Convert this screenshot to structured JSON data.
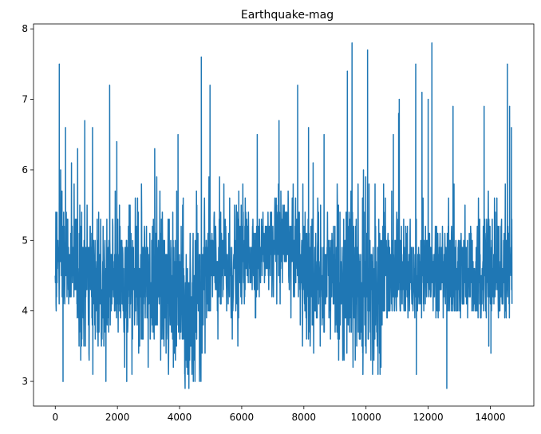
{
  "chart_data": {
    "type": "line",
    "title": "Earthquake-mag",
    "xlabel": "",
    "ylabel": "",
    "xlim": [
      -700,
      15400
    ],
    "ylim": [
      2.65,
      8.07
    ],
    "x_ticks": [
      0,
      2000,
      4000,
      6000,
      8000,
      10000,
      12000,
      14000
    ],
    "y_ticks": [
      3,
      4,
      5,
      6,
      7,
      8
    ],
    "grid": false,
    "legend": "none",
    "n_points": 14700,
    "series": [
      {
        "color": "#1f77b4",
        "segments": [
          {
            "x_start": 0,
            "x_end": 700,
            "min": 4.0,
            "max": 6.2,
            "mean": 4.7,
            "sd": 0.45
          },
          {
            "x_start": 700,
            "x_end": 2000,
            "min": 3.0,
            "max": 6.7,
            "mean": 4.4,
            "sd": 0.5
          },
          {
            "x_start": 2000,
            "x_end": 3500,
            "min": 3.0,
            "max": 6.3,
            "mean": 4.4,
            "sd": 0.5
          },
          {
            "x_start": 3500,
            "x_end": 4700,
            "min": 2.9,
            "max": 6.5,
            "mean": 4.2,
            "sd": 0.55
          },
          {
            "x_start": 4700,
            "x_end": 6000,
            "min": 3.3,
            "max": 6.0,
            "mean": 4.6,
            "sd": 0.45
          },
          {
            "x_start": 6000,
            "x_end": 7800,
            "min": 3.8,
            "max": 6.7,
            "mean": 4.85,
            "sd": 0.35
          },
          {
            "x_start": 7800,
            "x_end": 9000,
            "min": 3.4,
            "max": 6.5,
            "mean": 4.5,
            "sd": 0.5
          },
          {
            "x_start": 9000,
            "x_end": 10600,
            "min": 3.0,
            "max": 7.0,
            "mean": 4.4,
            "sd": 0.55
          },
          {
            "x_start": 10600,
            "x_end": 14700,
            "min": 3.9,
            "max": 7.0,
            "mean": 4.55,
            "sd": 0.42
          }
        ],
        "spikes": [
          {
            "x": 130,
            "y": 7.5
          },
          {
            "x": 330,
            "y": 6.6
          },
          {
            "x": 720,
            "y": 6.3
          },
          {
            "x": 950,
            "y": 6.7
          },
          {
            "x": 1200,
            "y": 6.6
          },
          {
            "x": 1750,
            "y": 7.2
          },
          {
            "x": 1980,
            "y": 6.4
          },
          {
            "x": 3200,
            "y": 6.3
          },
          {
            "x": 3950,
            "y": 6.5
          },
          {
            "x": 4700,
            "y": 7.6
          },
          {
            "x": 4980,
            "y": 7.2
          },
          {
            "x": 6500,
            "y": 6.5
          },
          {
            "x": 7200,
            "y": 6.7
          },
          {
            "x": 7800,
            "y": 7.2
          },
          {
            "x": 8150,
            "y": 6.6
          },
          {
            "x": 8650,
            "y": 6.5
          },
          {
            "x": 9400,
            "y": 7.4
          },
          {
            "x": 9550,
            "y": 7.8
          },
          {
            "x": 10050,
            "y": 7.7
          },
          {
            "x": 10880,
            "y": 6.5
          },
          {
            "x": 11050,
            "y": 6.8
          },
          {
            "x": 11070,
            "y": 7.0
          },
          {
            "x": 11600,
            "y": 7.5
          },
          {
            "x": 11800,
            "y": 7.1
          },
          {
            "x": 12000,
            "y": 7.0
          },
          {
            "x": 12120,
            "y": 7.8
          },
          {
            "x": 12800,
            "y": 6.9
          },
          {
            "x": 13800,
            "y": 6.9
          },
          {
            "x": 14550,
            "y": 7.5
          },
          {
            "x": 14620,
            "y": 6.9
          },
          {
            "x": 14680,
            "y": 6.6
          },
          {
            "x": 250,
            "y": 3.0
          },
          {
            "x": 2300,
            "y": 3.0
          },
          {
            "x": 4300,
            "y": 2.9
          },
          {
            "x": 9900,
            "y": 3.1
          },
          {
            "x": 12600,
            "y": 2.9
          },
          {
            "x": 11620,
            "y": 3.1
          },
          {
            "x": 13950,
            "y": 3.5
          },
          {
            "x": 14020,
            "y": 3.4
          }
        ]
      }
    ]
  }
}
